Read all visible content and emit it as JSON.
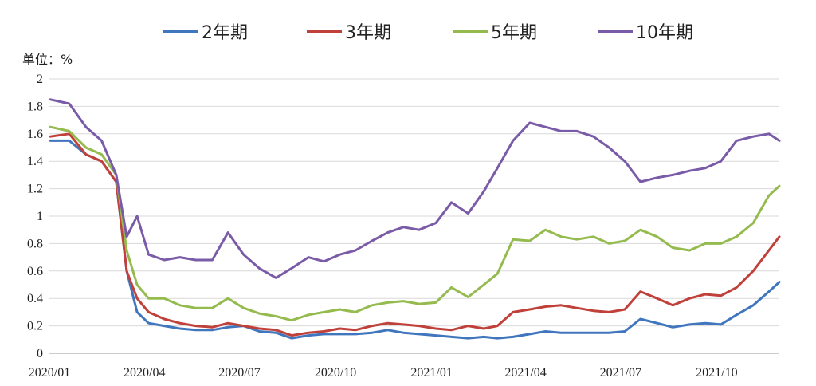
{
  "chart_data": {
    "type": "line",
    "title": "",
    "unit_label": "单位：%",
    "xlabel": "",
    "ylabel": "",
    "ylim": [
      0,
      2
    ],
    "y_ticks": [
      "0",
      "0.2",
      "0.4",
      "0.6",
      "0.8",
      "1",
      "1.2",
      "1.4",
      "1.6",
      "1.8",
      "2"
    ],
    "x_ticks": [
      "2020/01",
      "2020/04",
      "2020/07",
      "2020/10",
      "2021/01",
      "2021/04",
      "2021/07",
      "2021/10"
    ],
    "grid": "horizontal",
    "legend_position": "top",
    "x_dates": [
      "2020-01-02",
      "2020-01-20",
      "2020-02-05",
      "2020-02-20",
      "2020-03-05",
      "2020-03-15",
      "2020-03-25",
      "2020-04-05",
      "2020-04-20",
      "2020-05-05",
      "2020-05-20",
      "2020-06-05",
      "2020-06-20",
      "2020-07-05",
      "2020-07-20",
      "2020-08-05",
      "2020-08-20",
      "2020-09-05",
      "2020-09-20",
      "2020-10-05",
      "2020-10-20",
      "2020-11-05",
      "2020-11-20",
      "2020-12-05",
      "2020-12-20",
      "2021-01-05",
      "2021-01-20",
      "2021-02-05",
      "2021-02-20",
      "2021-03-05",
      "2021-03-20",
      "2021-04-05",
      "2021-04-20",
      "2021-05-05",
      "2021-05-20",
      "2021-06-05",
      "2021-06-20",
      "2021-07-05",
      "2021-07-20",
      "2021-08-05",
      "2021-08-20",
      "2021-09-05",
      "2021-09-20",
      "2021-10-05",
      "2021-10-20",
      "2021-11-05",
      "2021-11-20",
      "2021-11-30"
    ],
    "series": [
      {
        "name": "2年期",
        "color": "#3f76bd",
        "values": [
          1.55,
          1.55,
          1.45,
          1.4,
          1.25,
          0.6,
          0.3,
          0.22,
          0.2,
          0.18,
          0.17,
          0.17,
          0.19,
          0.2,
          0.16,
          0.15,
          0.11,
          0.13,
          0.14,
          0.14,
          0.14,
          0.15,
          0.17,
          0.15,
          0.14,
          0.13,
          0.12,
          0.11,
          0.12,
          0.11,
          0.12,
          0.14,
          0.16,
          0.15,
          0.15,
          0.15,
          0.15,
          0.16,
          0.25,
          0.22,
          0.19,
          0.21,
          0.22,
          0.21,
          0.28,
          0.35,
          0.45,
          0.52
        ]
      },
      {
        "name": "3年期",
        "color": "#c0403a",
        "values": [
          1.58,
          1.6,
          1.45,
          1.4,
          1.25,
          0.6,
          0.4,
          0.3,
          0.25,
          0.22,
          0.2,
          0.19,
          0.22,
          0.2,
          0.18,
          0.17,
          0.13,
          0.15,
          0.16,
          0.18,
          0.17,
          0.2,
          0.22,
          0.21,
          0.2,
          0.18,
          0.17,
          0.2,
          0.18,
          0.2,
          0.3,
          0.32,
          0.34,
          0.35,
          0.33,
          0.31,
          0.3,
          0.32,
          0.45,
          0.4,
          0.35,
          0.4,
          0.43,
          0.42,
          0.48,
          0.6,
          0.75,
          0.85
        ]
      },
      {
        "name": "5年期",
        "color": "#95bb4f",
        "values": [
          1.65,
          1.62,
          1.5,
          1.45,
          1.3,
          0.75,
          0.5,
          0.4,
          0.4,
          0.35,
          0.33,
          0.33,
          0.4,
          0.33,
          0.29,
          0.27,
          0.24,
          0.28,
          0.3,
          0.32,
          0.3,
          0.35,
          0.37,
          0.38,
          0.36,
          0.37,
          0.48,
          0.41,
          0.5,
          0.58,
          0.83,
          0.82,
          0.9,
          0.85,
          0.83,
          0.85,
          0.8,
          0.82,
          0.9,
          0.85,
          0.77,
          0.75,
          0.8,
          0.8,
          0.85,
          0.95,
          1.15,
          1.22
        ]
      },
      {
        "name": "10年期",
        "color": "#7a5ba8",
        "values": [
          1.85,
          1.82,
          1.65,
          1.55,
          1.3,
          0.85,
          1.0,
          0.72,
          0.68,
          0.7,
          0.68,
          0.68,
          0.88,
          0.72,
          0.62,
          0.55,
          0.62,
          0.7,
          0.67,
          0.72,
          0.75,
          0.82,
          0.88,
          0.92,
          0.9,
          0.95,
          1.1,
          1.02,
          1.18,
          1.35,
          1.55,
          1.68,
          1.65,
          1.62,
          1.62,
          1.58,
          1.5,
          1.4,
          1.25,
          1.28,
          1.3,
          1.33,
          1.35,
          1.4,
          1.55,
          1.58,
          1.6,
          1.55
        ]
      }
    ]
  }
}
